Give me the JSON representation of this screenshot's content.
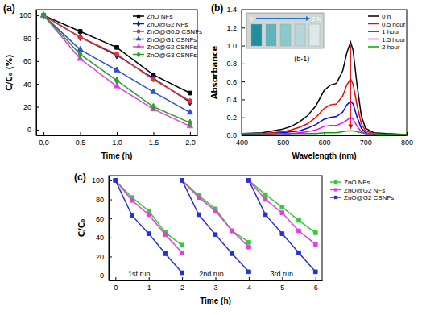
{
  "chart_data": [
    {
      "type": "line",
      "title": "(a)",
      "x_label": "Time (h)",
      "y_label": "C/C₀ (%)",
      "x": [
        0,
        0.5,
        1,
        1.5,
        2
      ],
      "xlim": [
        -0.1,
        2.1
      ],
      "ylim": [
        -5,
        105
      ],
      "xticks": [
        {
          "value": 0,
          "label": "0.0"
        },
        0.5,
        {
          "value": 1,
          "label": "1.0"
        },
        1.5,
        {
          "value": 2,
          "label": "2.0"
        }
      ],
      "yticks": [
        0,
        20,
        40,
        60,
        80,
        100
      ],
      "legend": "upper right",
      "series": [
        {
          "name": "ZnO NFs",
          "color": "#000000",
          "marker": "square",
          "values": [
            100,
            86,
            72,
            48,
            32
          ]
        },
        {
          "name": "ZnO@G2 NFs",
          "color": "#1a1a8c",
          "marker": "diamond",
          "values": [
            100,
            81,
            65,
            45,
            24
          ]
        },
        {
          "name": "ZnO@G0.5 CSNFs",
          "color": "#e8312a",
          "marker": "circle",
          "values": [
            100,
            81,
            66,
            44,
            25
          ]
        },
        {
          "name": "ZnO@G1 CSNFs",
          "color": "#2b4fd8",
          "marker": "triangle",
          "values": [
            100,
            70,
            52,
            33,
            15
          ]
        },
        {
          "name": "ZnO@G2 CSNFs",
          "color": "#e040e0",
          "marker": "triangle",
          "values": [
            100,
            62,
            38,
            18,
            3
          ]
        },
        {
          "name": "ZnO@G3 CSNFs",
          "color": "#2ca02c",
          "marker": "diamond",
          "values": [
            100,
            66,
            43,
            20,
            6
          ]
        }
      ]
    },
    {
      "type": "line",
      "title": "(b)",
      "x_label": "Wavelength (nm)",
      "y_label": "Absorbance",
      "x": [
        400,
        450,
        500,
        520,
        540,
        560,
        580,
        600,
        615,
        630,
        645,
        655,
        664,
        670,
        680,
        690,
        700,
        720,
        750,
        800
      ],
      "xlim": [
        400,
        800
      ],
      "ylim": [
        0,
        1.4
      ],
      "xticks": [
        400,
        500,
        600,
        700,
        800
      ],
      "yticks": [
        {
          "value": 0,
          "label": "0.0"
        },
        0.2,
        0.4,
        0.6,
        0.8,
        {
          "value": 1,
          "label": "1.0"
        },
        1.2,
        1.4
      ],
      "legend": "upper right",
      "annotations": [
        "0",
        "2 h",
        "(b-1)"
      ],
      "series": [
        {
          "name": "0 h",
          "color": "#000000",
          "marker": "none",
          "values": [
            0.02,
            0.03,
            0.07,
            0.1,
            0.15,
            0.22,
            0.33,
            0.5,
            0.56,
            0.58,
            0.72,
            0.92,
            1.04,
            0.95,
            0.55,
            0.22,
            0.08,
            0.03,
            0.02,
            0.01
          ]
        },
        {
          "name": "0.5 hour",
          "color": "#ff0000",
          "marker": "none",
          "values": [
            0.01,
            0.02,
            0.04,
            0.06,
            0.09,
            0.13,
            0.2,
            0.3,
            0.34,
            0.35,
            0.44,
            0.56,
            0.63,
            0.57,
            0.33,
            0.13,
            0.05,
            0.02,
            0.01,
            0.01
          ]
        },
        {
          "name": "1 hour",
          "color": "#0000ff",
          "marker": "none",
          "values": [
            0.01,
            0.01,
            0.03,
            0.04,
            0.05,
            0.08,
            0.12,
            0.18,
            0.2,
            0.21,
            0.26,
            0.34,
            0.38,
            0.35,
            0.2,
            0.08,
            0.03,
            0.01,
            0.01,
            0
          ]
        },
        {
          "name": "1.5 hour",
          "color": "#ff00ff",
          "marker": "none",
          "values": [
            0,
            0.01,
            0.01,
            0.02,
            0.03,
            0.04,
            0.06,
            0.1,
            0.11,
            0.11,
            0.14,
            0.17,
            0.2,
            0.18,
            0.1,
            0.04,
            0.02,
            0.01,
            0,
            0
          ]
        },
        {
          "name": "2 hour",
          "color": "#00aa00",
          "marker": "none",
          "values": [
            0.02,
            0.02,
            0.02,
            0.02,
            0.02,
            0.02,
            0.02,
            0.03,
            0.03,
            0.03,
            0.04,
            0.05,
            0.05,
            0.05,
            0.04,
            0.03,
            0.02,
            0.02,
            0.01,
            0.01
          ]
        }
      ]
    },
    {
      "type": "line",
      "title": "(c)",
      "x_label": "Time (h)",
      "y_label": "C/C₀",
      "x": [
        0,
        0.5,
        1,
        1.5,
        2,
        2,
        2,
        2.5,
        3,
        3.5,
        4,
        4,
        4,
        4.5,
        5,
        5.5,
        6
      ],
      "xlim": [
        -0.2,
        6.2
      ],
      "ylim": [
        -5,
        105
      ],
      "xticks": [
        0,
        1,
        2,
        3,
        4,
        5,
        6
      ],
      "yticks": [
        0,
        20,
        40,
        60,
        80,
        100
      ],
      "legend": "right",
      "annotations": [
        "1st run",
        "2nd run",
        "3rd run"
      ],
      "series": [
        {
          "name": "ZnO NFs",
          "color": "#33cc33",
          "marker": "square",
          "values": [
            100,
            82,
            68,
            45,
            32,
            null,
            100,
            84,
            70,
            47,
            35,
            null,
            100,
            85,
            72,
            58,
            45
          ]
        },
        {
          "name": "ZnO@G2 NFs",
          "color": "#e040e0",
          "marker": "square",
          "values": [
            100,
            79,
            64,
            43,
            24,
            null,
            100,
            82,
            68,
            47,
            30,
            null,
            100,
            80,
            66,
            47,
            33
          ]
        },
        {
          "name": "ZnO@G2 CSNFs",
          "color": "#2233dd",
          "marker": "square",
          "values": [
            100,
            63,
            44,
            23,
            3,
            null,
            100,
            64,
            43,
            23,
            4,
            null,
            100,
            64,
            44,
            24,
            4
          ]
        }
      ]
    }
  ]
}
